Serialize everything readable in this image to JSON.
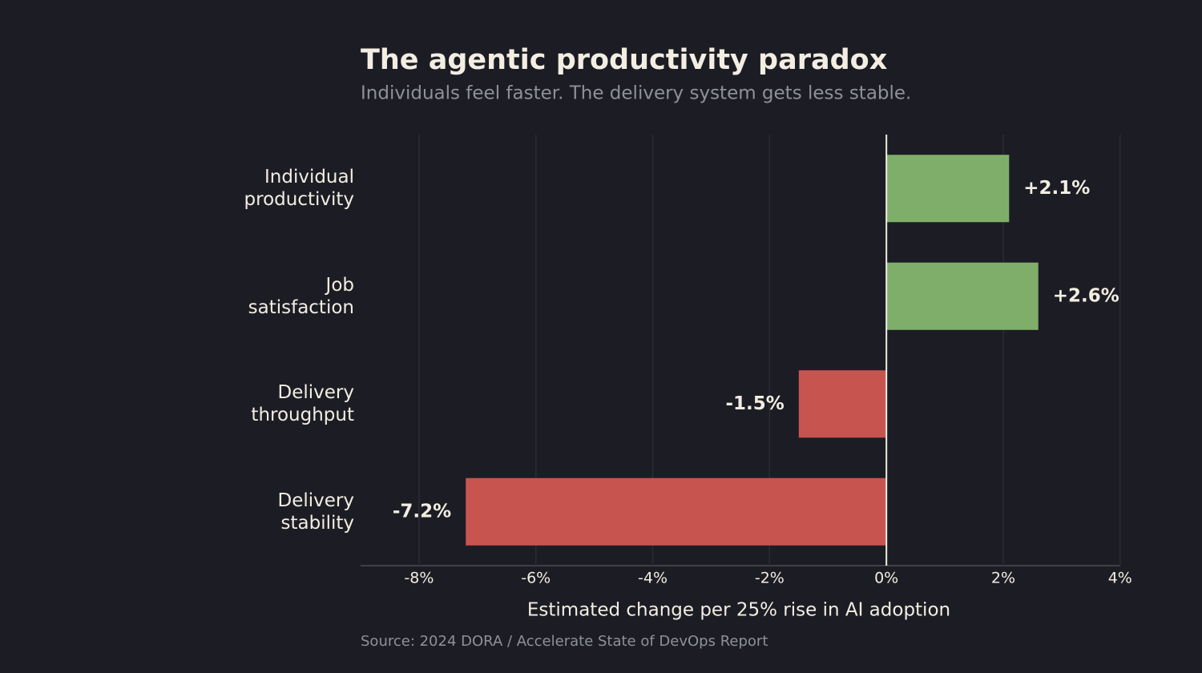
{
  "chart_data": {
    "type": "barh",
    "title": "The agentic productivity paradox",
    "subtitle": "Individuals feel faster. The delivery system gets less stable.",
    "categories": [
      "Individual\nproductivity",
      "Job\nsatisfaction",
      "Delivery\nthroughput",
      "Delivery\nstability"
    ],
    "values": [
      2.1,
      2.6,
      -1.5,
      -7.2
    ],
    "value_labels": [
      "+2.1%",
      "+2.6%",
      "-1.5%",
      "-7.2%"
    ],
    "colors": [
      "#7fae6b",
      "#7fae6b",
      "#c85450",
      "#c85450"
    ],
    "xlim": [
      -9,
      4
    ],
    "xticks": [
      {
        "value": -8,
        "label": "-8%"
      },
      {
        "value": -6,
        "label": "-6%"
      },
      {
        "value": -4,
        "label": "-4%"
      },
      {
        "value": -2,
        "label": "-2%"
      },
      {
        "value": 0,
        "label": "0%"
      },
      {
        "value": 2,
        "label": "2%"
      },
      {
        "value": 4,
        "label": "4%"
      }
    ],
    "xlabel": "Estimated change per 25% rise in AI adoption",
    "source": "Source: 2024 DORA / Accelerate State of DevOps Report",
    "grid": true
  }
}
